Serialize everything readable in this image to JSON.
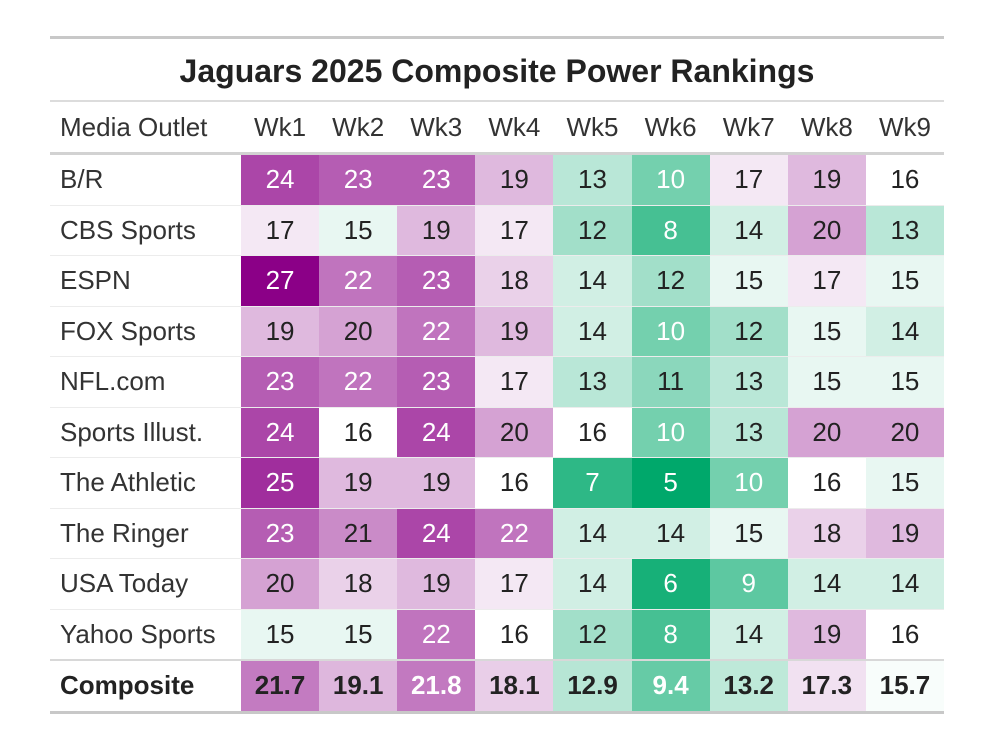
{
  "chart_data": {
    "type": "table",
    "title": "Jaguars 2025 Composite Power Rankings",
    "header_label": "Media Outlet",
    "columns": [
      "Wk1",
      "Wk2",
      "Wk3",
      "Wk4",
      "Wk5",
      "Wk6",
      "Wk7",
      "Wk8",
      "Wk9"
    ],
    "rows": [
      {
        "outlet": "B/R",
        "values": [
          24,
          23,
          23,
          19,
          13,
          10,
          17,
          19,
          16
        ]
      },
      {
        "outlet": "CBS Sports",
        "values": [
          17,
          15,
          19,
          17,
          12,
          8,
          14,
          20,
          13
        ]
      },
      {
        "outlet": "ESPN",
        "values": [
          27,
          22,
          23,
          18,
          14,
          12,
          15,
          17,
          15
        ]
      },
      {
        "outlet": "FOX Sports",
        "values": [
          19,
          20,
          22,
          19,
          14,
          10,
          12,
          15,
          14
        ]
      },
      {
        "outlet": "NFL.com",
        "values": [
          23,
          22,
          23,
          17,
          13,
          11,
          13,
          15,
          15
        ]
      },
      {
        "outlet": "Sports Illust.",
        "values": [
          24,
          16,
          24,
          20,
          16,
          10,
          13,
          20,
          20
        ]
      },
      {
        "outlet": "The Athletic",
        "values": [
          25,
          19,
          19,
          16,
          7,
          5,
          10,
          16,
          15
        ]
      },
      {
        "outlet": "The Ringer",
        "values": [
          23,
          21,
          24,
          22,
          14,
          14,
          15,
          18,
          19
        ]
      },
      {
        "outlet": "USA Today",
        "values": [
          20,
          18,
          19,
          17,
          14,
          6,
          9,
          14,
          14
        ]
      },
      {
        "outlet": "Yahoo Sports",
        "values": [
          15,
          15,
          22,
          16,
          12,
          8,
          14,
          19,
          16
        ]
      }
    ],
    "composite": {
      "label": "Composite",
      "values": [
        "21.7",
        "19.1",
        "21.8",
        "18.1",
        "12.9",
        "9.4",
        "13.2",
        "17.3",
        "15.7"
      ]
    },
    "color_scale": {
      "type": "diverging",
      "low": 5,
      "mid": 16,
      "high": 27,
      "low_color": "#00a86b",
      "mid_color": "#ffffff",
      "high_color": "#8b0087"
    }
  }
}
